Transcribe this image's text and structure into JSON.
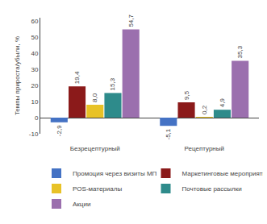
{
  "chart_data": {
    "type": "bar",
    "categories": [
      "Безрецептурный",
      "Рецептурный"
    ],
    "series": [
      {
        "name": "Промоция через визиты МП",
        "color": "#4472c4",
        "values": [
          -2.9,
          -5.1
        ],
        "value_labels": [
          "-2,9",
          "-5,1"
        ]
      },
      {
        "name": "Маркетинговые мероприятия",
        "color": "#8b1a1a",
        "values": [
          19.4,
          9.5
        ],
        "value_labels": [
          "19,4",
          "9,5"
        ]
      },
      {
        "name": "POS-материалы",
        "color": "#e8c227",
        "values": [
          8.0,
          0.2
        ],
        "value_labels": [
          "8,0",
          "0,2"
        ]
      },
      {
        "name": "Почтовые рассылки",
        "color": "#2e8b8b",
        "values": [
          15.3,
          4.9
        ],
        "value_labels": [
          "15,3",
          "4,9"
        ]
      },
      {
        "name": "Акции",
        "color": "#9b6fae",
        "values": [
          54.7,
          35.3
        ],
        "value_labels": [
          "54,7",
          "35,3"
        ]
      }
    ],
    "ylabel": "Темпы прироста/убыли, %",
    "ylim": [
      -10,
      62
    ],
    "yticks": [
      -10,
      0,
      10,
      20,
      30,
      40,
      50,
      60
    ],
    "grid": false,
    "legend": "bottom",
    "data_labels": true
  }
}
